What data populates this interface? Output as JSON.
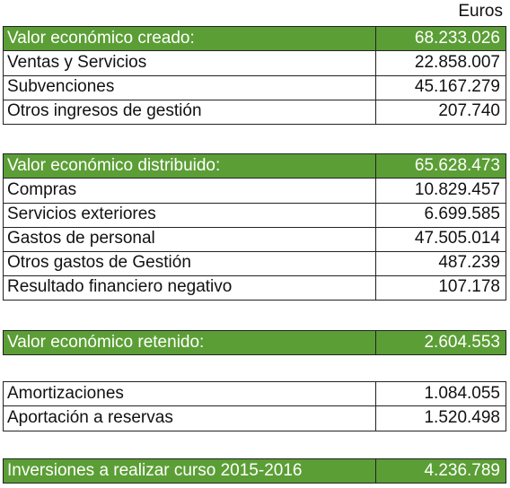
{
  "unit": "Euros",
  "sections": [
    {
      "header": {
        "label": "Valor económico creado:",
        "value": "68.233.026"
      },
      "rows": [
        [
          "Ventas y Servicios",
          "22.858.007"
        ],
        [
          "Subvenciones",
          "45.167.279"
        ],
        [
          "Otros ingresos de gestión",
          "207.740"
        ]
      ]
    },
    {
      "header": {
        "label": "Valor económico distribuido:",
        "value": "65.628.473"
      },
      "rows": [
        [
          "Compras",
          "10.829.457"
        ],
        [
          "Servicios exteriores",
          "6.699.585"
        ],
        [
          "Gastos de personal",
          "47.505.014"
        ],
        [
          "Otros gastos de Gestión",
          "487.239"
        ],
        [
          "Resultado financiero negativo",
          "107.178"
        ]
      ]
    },
    {
      "header": {
        "label": "Valor económico retenido:",
        "value": "2.604.553"
      },
      "rows": []
    },
    {
      "rows": [
        [
          "Amortizaciones",
          "1.084.055"
        ],
        [
          "Aportación a reservas",
          "1.520.498"
        ]
      ]
    },
    {
      "header": {
        "label": "Inversiones a realizar curso 2015-2016",
        "value": "4.236.789"
      },
      "rows": []
    }
  ]
}
